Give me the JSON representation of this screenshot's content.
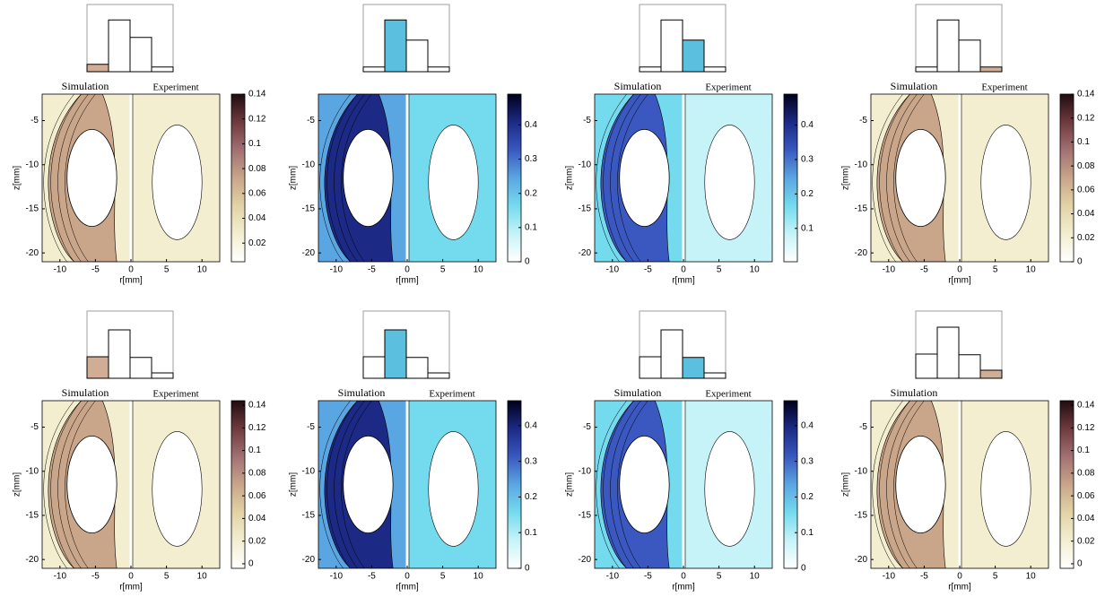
{
  "chart_data": [
    {
      "type": "contour",
      "left_label": "Simulation",
      "right_label": "Experiment",
      "xlabel": "r[mm]",
      "ylabel": "z[mm]",
      "xlim": [
        -12.5,
        12.5
      ],
      "xticks": [
        -10,
        -5,
        0,
        5,
        10
      ],
      "ylim": [
        -21,
        -2
      ],
      "yticks": [
        -5,
        -10,
        -15,
        -20
      ],
      "colorbar_lim": [
        0.005,
        0.14
      ],
      "colorbar_ticks": [
        0.02,
        0.04,
        0.06,
        0.08,
        0.1,
        0.12,
        0.14
      ],
      "colormap": [
        "#ffffff",
        "#f3eed0",
        "#e2d3a6",
        "#c9a58a",
        "#a27072",
        "#6e3a3e",
        "#200c10"
      ],
      "inset_values": [
        0.11,
        0.77,
        0.51,
        0.07
      ],
      "inset_highlight": 0,
      "inset_color": "#d2ad96"
    },
    {
      "type": "contour",
      "xlabel": "r[mm]",
      "ylabel": "z[mm]",
      "xlim": [
        -12.5,
        12.5
      ],
      "xticks": [
        -10,
        -5,
        0,
        5,
        10
      ],
      "ylim": [
        -21,
        -2
      ],
      "yticks": [
        -5,
        -10,
        -15,
        -20
      ],
      "colorbar_lim": [
        0,
        0.49
      ],
      "colorbar_ticks": [
        0,
        0.1,
        0.2,
        0.3,
        0.4
      ],
      "colormap": [
        "#ffffff",
        "#c6f3f8",
        "#74dbee",
        "#5aa6e2",
        "#3a58c0",
        "#1c2a86",
        "#00001a"
      ],
      "inset_values": [
        0.07,
        0.77,
        0.47,
        0.07
      ],
      "inset_highlight": 1,
      "inset_color": "#5bc0e0"
    },
    {
      "type": "contour",
      "left_label": "Simulation",
      "right_label": "Experiment",
      "xlabel": "r[mm]",
      "ylabel": "z[mm]",
      "xlim": [
        -12.5,
        12.5
      ],
      "xticks": [
        -10,
        -5,
        0,
        5,
        10
      ],
      "ylim": [
        -21,
        -2
      ],
      "yticks": [
        -5,
        -10,
        -15,
        -20
      ],
      "colorbar_lim": [
        0.003,
        0.49
      ],
      "colorbar_ticks": [
        0.1,
        0.2,
        0.3,
        0.4
      ],
      "colormap": [
        "#ffffff",
        "#c6f3f8",
        "#74dbee",
        "#5aa6e2",
        "#3a58c0",
        "#1c2a86",
        "#00001a"
      ],
      "inset_values": [
        0.07,
        0.77,
        0.47,
        0.07
      ],
      "inset_highlight": 2,
      "inset_color": "#5bc0e0"
    },
    {
      "type": "contour",
      "left_label": "Simulation",
      "right_label": "Experiment",
      "xlabel": "r[mm]",
      "ylabel": "z[mm]",
      "xlim": [
        -12.5,
        12.5
      ],
      "xticks": [
        -10,
        -5,
        0,
        5,
        10
      ],
      "ylim": [
        -21,
        -2
      ],
      "yticks": [
        -5,
        -10,
        -15,
        -20
      ],
      "colorbar_lim": [
        0,
        0.14
      ],
      "colorbar_ticks": [
        0,
        0.02,
        0.04,
        0.06,
        0.08,
        0.1,
        0.12,
        0.14
      ],
      "colormap": [
        "#ffffff",
        "#f3eed0",
        "#e2d3a6",
        "#c9a58a",
        "#a27072",
        "#6e3a3e",
        "#200c10"
      ],
      "inset_values": [
        0.07,
        0.77,
        0.47,
        0.07
      ],
      "inset_highlight": 3,
      "inset_color": "#d2ad96"
    },
    {
      "type": "contour",
      "left_label": "Simulation",
      "right_label": "Experiment",
      "xlabel": "r[mm]",
      "ylabel": "z[mm]",
      "xlim": [
        -12.5,
        12.5
      ],
      "xticks": [
        -10,
        -5,
        0,
        5,
        10
      ],
      "ylim": [
        -21,
        -2
      ],
      "yticks": [
        -5,
        -10,
        -15,
        -20
      ],
      "colorbar_lim": [
        -0.004,
        0.144
      ],
      "colorbar_ticks": [
        0,
        0.02,
        0.04,
        0.06,
        0.08,
        0.1,
        0.12,
        0.14
      ],
      "colormap": [
        "#ffffff",
        "#f3eed0",
        "#e2d3a6",
        "#c9a58a",
        "#a27072",
        "#6e3a3e",
        "#200c10"
      ],
      "inset_values": [
        0.32,
        0.72,
        0.31,
        0.08
      ],
      "inset_highlight": 0,
      "inset_color": "#d2ad96"
    },
    {
      "type": "contour",
      "left_label": "Simulation",
      "right_label": "Experiment",
      "xlabel": "r[mm]",
      "ylabel": "z[mm]",
      "xlim": [
        -12.5,
        12.5
      ],
      "xticks": [
        -10,
        -5,
        0,
        5,
        10
      ],
      "ylim": [
        -21,
        -2
      ],
      "yticks": [
        -5,
        -10,
        -15,
        -20
      ],
      "colorbar_lim": [
        0,
        0.47
      ],
      "colorbar_ticks": [
        0,
        0.1,
        0.2,
        0.3,
        0.4
      ],
      "colormap": [
        "#ffffff",
        "#c6f3f8",
        "#74dbee",
        "#5aa6e2",
        "#3a58c0",
        "#1c2a86",
        "#00001a"
      ],
      "inset_values": [
        0.32,
        0.72,
        0.31,
        0.08
      ],
      "inset_highlight": 1,
      "inset_color": "#5bc0e0"
    },
    {
      "type": "contour",
      "left_label": "Simulation",
      "right_label": "Experiment",
      "xlabel": "r[mm]",
      "ylabel": "z[mm]",
      "xlim": [
        -12.5,
        12.5
      ],
      "xticks": [
        -10,
        -5,
        0,
        5,
        10
      ],
      "ylim": [
        -21,
        -2
      ],
      "yticks": [
        -5,
        -10,
        -15,
        -20
      ],
      "colorbar_lim": [
        0,
        0.47
      ],
      "colorbar_ticks": [
        0,
        0.1,
        0.2,
        0.3,
        0.4
      ],
      "colormap": [
        "#ffffff",
        "#c6f3f8",
        "#74dbee",
        "#5aa6e2",
        "#3a58c0",
        "#1c2a86",
        "#00001a"
      ],
      "inset_values": [
        0.32,
        0.72,
        0.31,
        0.08
      ],
      "inset_highlight": 2,
      "inset_color": "#5bc0e0"
    },
    {
      "type": "contour",
      "left_label": "Simulation",
      "xlabel": "r[mm]",
      "ylabel": "z[mm]",
      "xlim": [
        -12.5,
        12.5
      ],
      "xticks": [
        -10,
        -5,
        0,
        5,
        10
      ],
      "ylim": [
        -21,
        -2
      ],
      "yticks": [
        -5,
        -10,
        -15,
        -20
      ],
      "colorbar_lim": [
        -0.004,
        0.144
      ],
      "colorbar_ticks": [
        0,
        0.02,
        0.04,
        0.06,
        0.08,
        0.1,
        0.12,
        0.14
      ],
      "colormap": [
        "#ffffff",
        "#f3eed0",
        "#e2d3a6",
        "#c9a58a",
        "#a27072",
        "#6e3a3e",
        "#200c10"
      ],
      "inset_values": [
        0.36,
        0.76,
        0.35,
        0.12
      ],
      "inset_highlight": 3,
      "inset_color": "#d2ad96"
    }
  ]
}
